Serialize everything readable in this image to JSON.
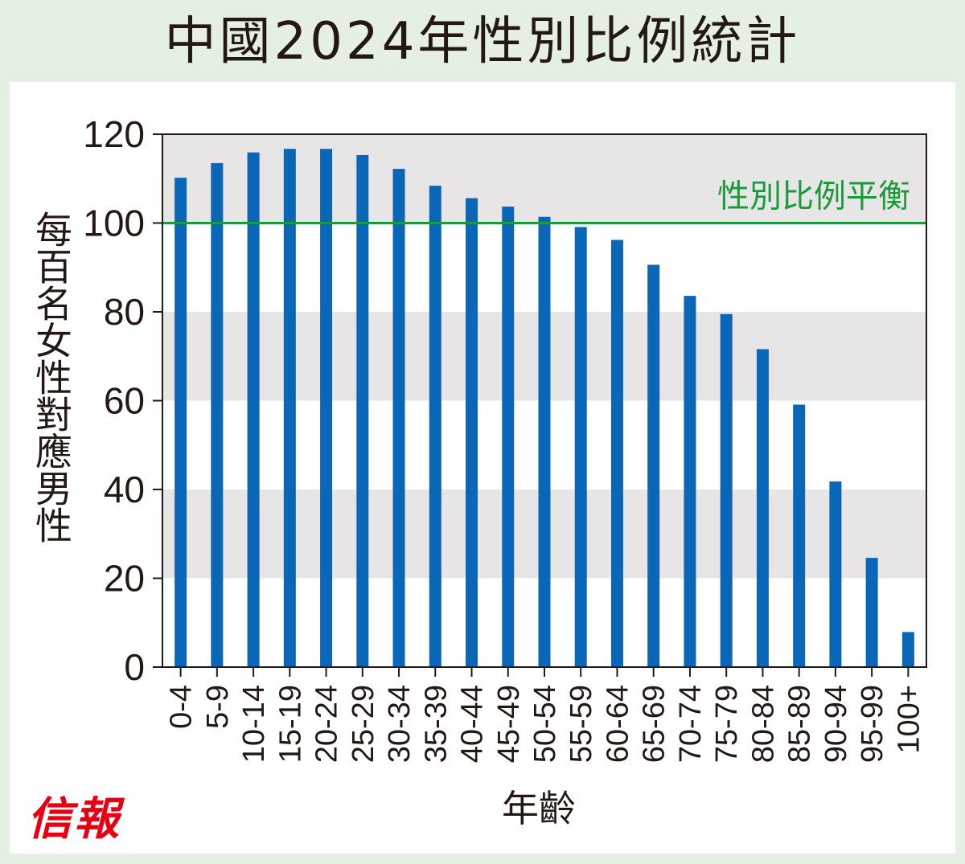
{
  "header": {
    "title": "中國2024年性別比例統計"
  },
  "brand": {
    "logo_text": "信報"
  },
  "chart_data": {
    "type": "bar",
    "title": "中國2024年性別比例統計",
    "ylabel": "每百名女性對應男性",
    "xlabel": "年齡",
    "categories": [
      "0-4",
      "5-9",
      "10-14",
      "15-19",
      "20-24",
      "25-29",
      "30-34",
      "35-39",
      "40-44",
      "45-49",
      "50-54",
      "55-59",
      "60-64",
      "65-69",
      "70-74",
      "75-79",
      "80-84",
      "85-89",
      "90-94",
      "95-99",
      "100+"
    ],
    "values": [
      110.2,
      113.5,
      115.9,
      116.7,
      116.7,
      115.3,
      112.2,
      108.4,
      105.6,
      103.7,
      101.4,
      99.1,
      96.2,
      90.6,
      83.6,
      79.5,
      71.6,
      59.1,
      41.8,
      24.6,
      7.9
    ],
    "ylim": [
      0,
      120
    ],
    "yticks": [
      0,
      20,
      40,
      60,
      80,
      100,
      120
    ],
    "grid": "alternating horizontal bands",
    "reference_line": {
      "value": 100,
      "label": "性別比例平衡",
      "color": "#1a9a3a"
    },
    "colors": {
      "bar": "#0a66b7",
      "band": "#e7e5e6",
      "axis": "#231815"
    }
  }
}
